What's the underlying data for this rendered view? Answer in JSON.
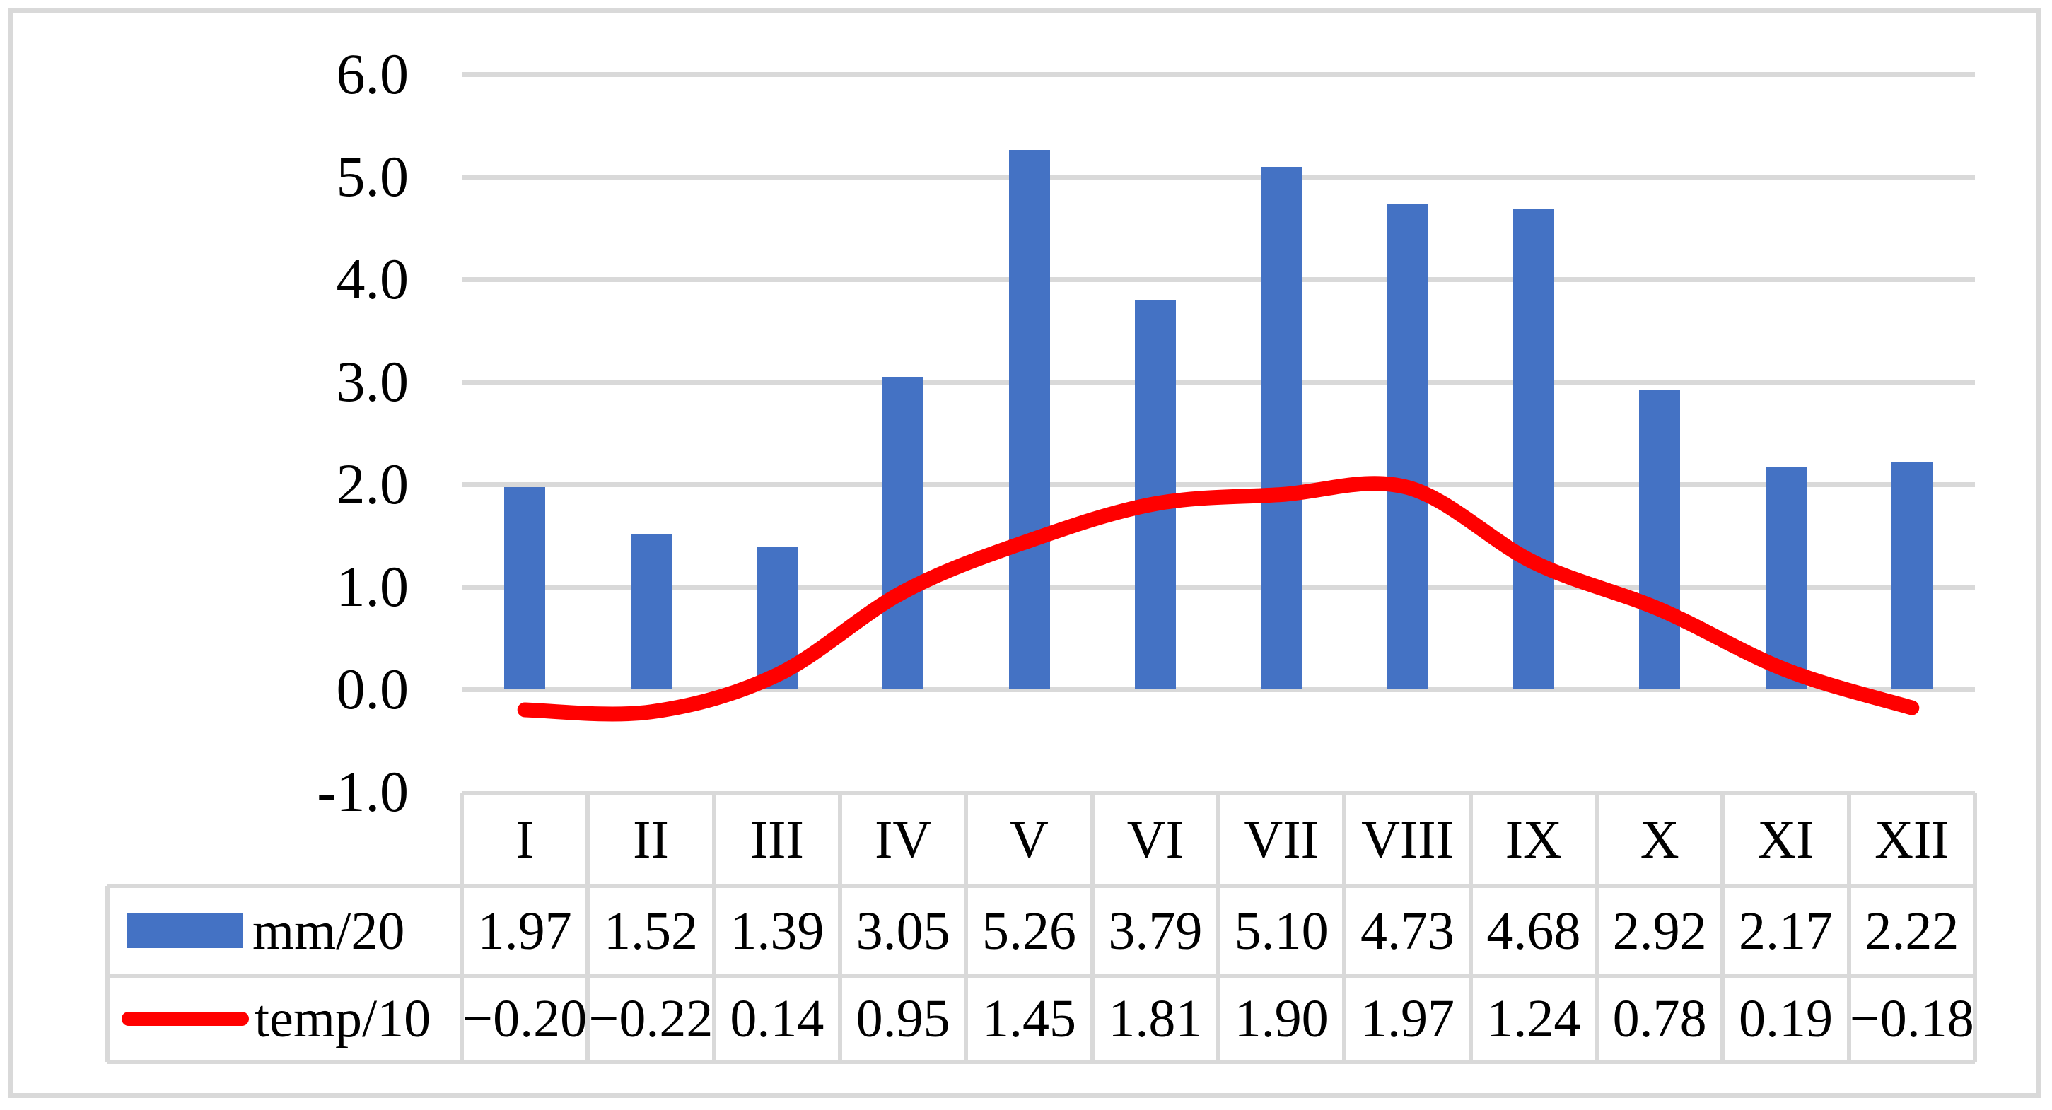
{
  "figure": {
    "background": "#FFFFFF",
    "border_color": "#D9D9D9"
  },
  "chart_data": {
    "type": "bar",
    "subtype": "combo-bar-line-with-data-table",
    "title": "",
    "xlabel": "",
    "ylabel": "",
    "categories": [
      "I",
      "II",
      "III",
      "IV",
      "V",
      "VI",
      "VII",
      "VIII",
      "IX",
      "X",
      "XI",
      "XII"
    ],
    "series": [
      {
        "name": "mm/20",
        "type": "bar",
        "color": "#4472C4",
        "values": [
          1.97,
          1.52,
          1.39,
          3.05,
          5.26,
          3.79,
          5.1,
          4.73,
          4.68,
          2.92,
          2.17,
          2.22
        ],
        "display": [
          "1.97",
          "1.52",
          "1.39",
          "3.05",
          "5.26",
          "3.79",
          "5.10",
          "4.73",
          "4.68",
          "2.92",
          "2.17",
          "2.22"
        ]
      },
      {
        "name": "temp/10",
        "type": "line",
        "smooth": true,
        "color": "#FF0000",
        "values": [
          -0.2,
          -0.22,
          0.14,
          0.95,
          1.45,
          1.81,
          1.9,
          1.97,
          1.24,
          0.78,
          0.19,
          -0.18
        ],
        "display": [
          "−0.20",
          "−0.22",
          "0.14",
          "0.95",
          "1.45",
          "1.81",
          "1.90",
          "1.97",
          "1.24",
          "0.78",
          "0.19",
          "−0.18"
        ]
      }
    ],
    "yticks": [
      "6.0",
      "5.0",
      "4.0",
      "3.0",
      "2.0",
      "1.0",
      "0.0",
      "-1.0"
    ],
    "ytick_values": [
      6.0,
      5.0,
      4.0,
      3.0,
      2.0,
      1.0,
      0.0,
      -1.0
    ],
    "ylim": [
      -1.0,
      6.0
    ],
    "grid": "horizontal",
    "gridline_color": "#D9D9D9",
    "legend_position": "table-left"
  }
}
